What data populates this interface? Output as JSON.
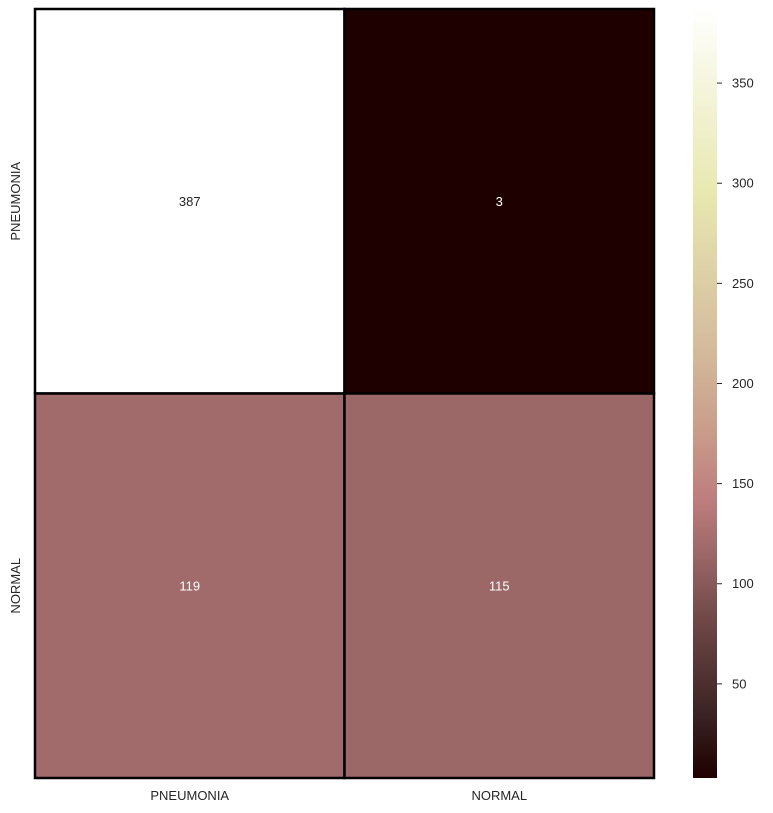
{
  "chart_data": {
    "type": "heatmap",
    "title": "",
    "xlabel": "",
    "ylabel": "",
    "x_categories": [
      "PNEUMONIA",
      "NORMAL"
    ],
    "y_categories": [
      "PNEUMONIA",
      "NORMAL"
    ],
    "values": [
      [
        387,
        3
      ],
      [
        119,
        115
      ]
    ],
    "value_labels": [
      [
        "387",
        "3"
      ],
      [
        "119",
        "115"
      ]
    ],
    "colorbar": {
      "min": 3,
      "max": 387,
      "ticks": [
        50,
        100,
        150,
        200,
        250,
        300,
        350
      ],
      "tick_labels": [
        "50",
        "100",
        "150",
        "200",
        "250",
        "300",
        "350"
      ],
      "colormap": "pink",
      "stops": [
        [
          0.0,
          "#1e0000"
        ],
        [
          0.08,
          "#3a2222"
        ],
        [
          0.2,
          "#6d4646"
        ],
        [
          0.3,
          "#a06a6a"
        ],
        [
          0.36,
          "#bd7d7d"
        ],
        [
          0.45,
          "#c99c8a"
        ],
        [
          0.55,
          "#d3b99a"
        ],
        [
          0.65,
          "#ddcfa6"
        ],
        [
          0.76,
          "#e8e8b0"
        ],
        [
          0.88,
          "#f3f3d6"
        ],
        [
          1.0,
          "#ffffff"
        ]
      ]
    },
    "cell_border_color": "#000000",
    "legend": "right"
  }
}
